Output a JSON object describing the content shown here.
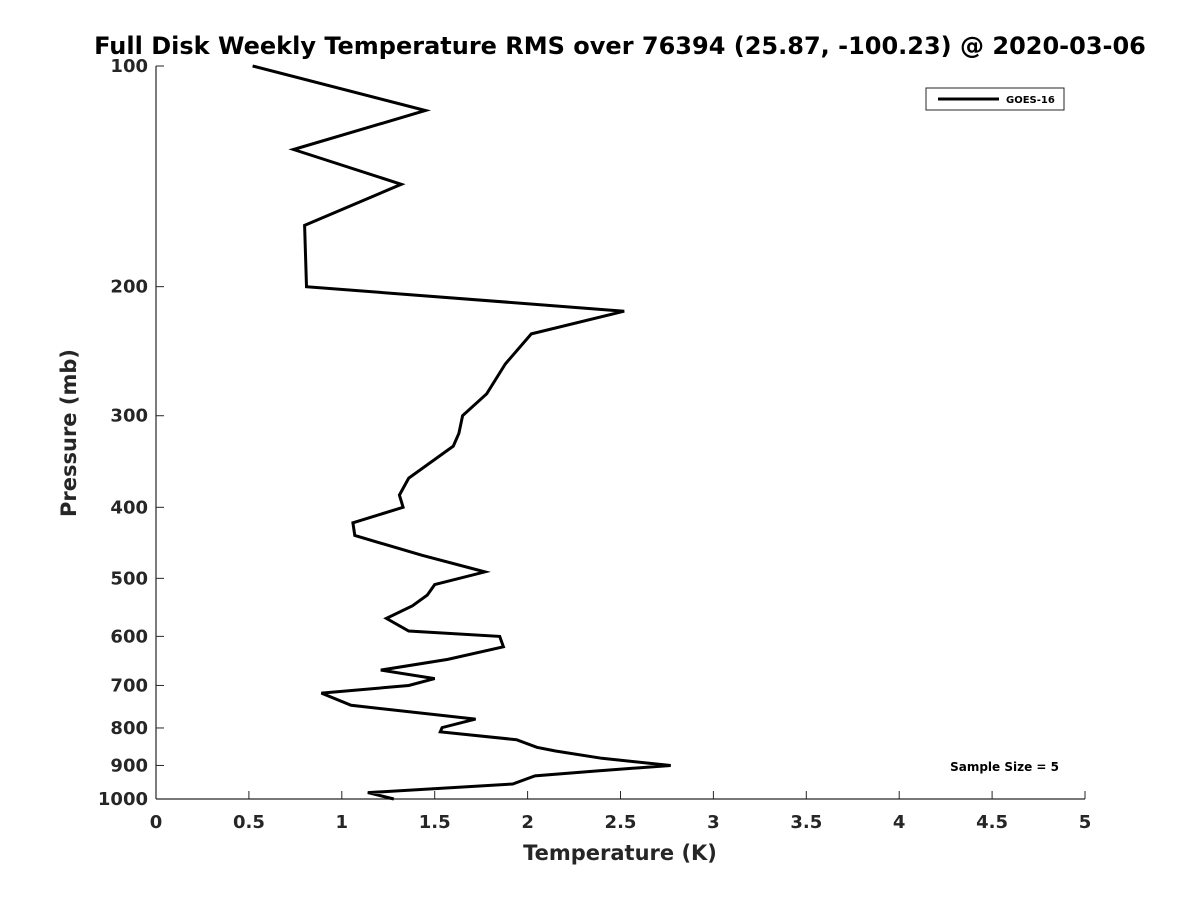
{
  "chart_data": {
    "type": "line",
    "title": "Full Disk Weekly Temperature RMS over 76394 (25.87, -100.23) @ 2020-03-06",
    "xlabel": "Temperature (K)",
    "ylabel": "Pressure (mb)",
    "xlim": [
      0,
      5
    ],
    "ylim": [
      1000,
      100
    ],
    "yscale": "log",
    "xticks": [
      "0",
      "0.5",
      "1",
      "1.5",
      "2",
      "2.5",
      "3",
      "3.5",
      "4",
      "4.5",
      "5"
    ],
    "yticks": [
      "100",
      "200",
      "300",
      "400",
      "500",
      "600",
      "700",
      "800",
      "900",
      "1000"
    ],
    "grid": false,
    "legend_position": "top-right",
    "annotation": "Sample Size = 5",
    "series": [
      {
        "name": "GOES-16",
        "color": "#000000",
        "x": [
          0.52,
          1.45,
          0.74,
          1.32,
          0.8,
          0.81,
          2.52,
          2.02,
          1.88,
          1.78,
          1.65,
          1.63,
          1.6,
          1.36,
          1.31,
          1.33,
          1.06,
          1.07,
          1.43,
          1.77,
          1.5,
          1.46,
          1.38,
          1.24,
          1.36,
          1.85,
          1.87,
          1.57,
          1.21,
          1.5,
          1.36,
          0.89,
          1.05,
          1.72,
          1.54,
          1.53,
          1.94,
          2.05,
          2.15,
          2.4,
          2.77,
          2.36,
          2.04,
          1.92,
          1.14,
          1.28
        ],
        "y": [
          100,
          115,
          130,
          145,
          165,
          200,
          216,
          232,
          255,
          280,
          300,
          317,
          330,
          365,
          385,
          400,
          420,
          437,
          465,
          490,
          510,
          527,
          545,
          567,
          590,
          600,
          620,
          645,
          667,
          685,
          700,
          717,
          745,
          778,
          799,
          810,
          830,
          850,
          860,
          880,
          900,
          916,
          930,
          954,
          980,
          1000
        ]
      }
    ]
  }
}
